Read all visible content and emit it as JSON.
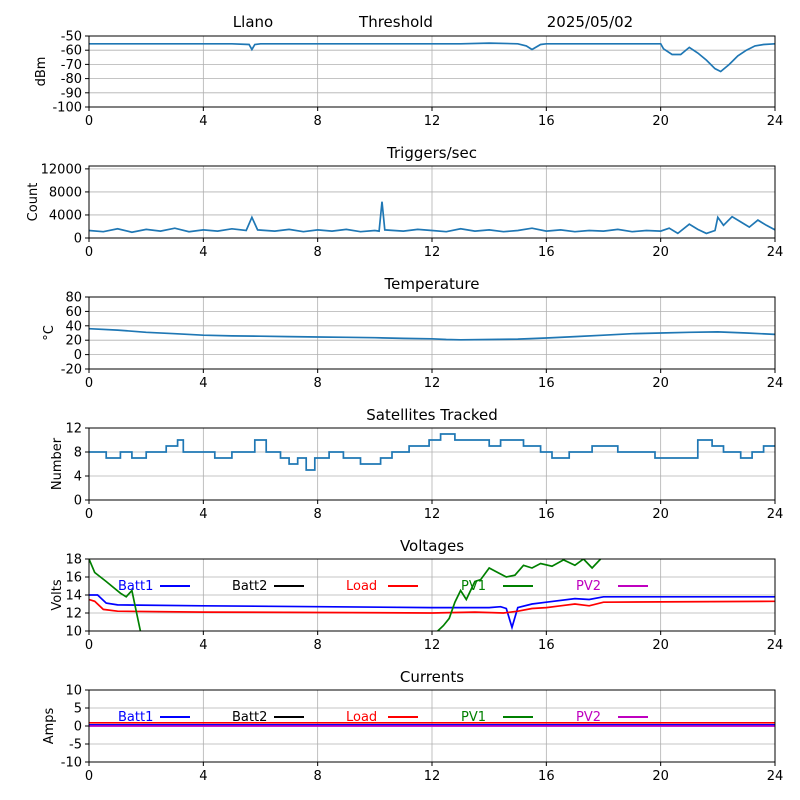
{
  "header": {
    "site": "Llano",
    "mode": "Threshold",
    "date": "2025/05/02"
  },
  "colors": {
    "default_line": "#1f77b4",
    "grid": "#b0b0b0",
    "axes": "#000000",
    "batt1": "#0000ff",
    "batt2": "#000000",
    "load": "#ff0000",
    "pv1": "#008000",
    "pv2": "#bf00bf"
  },
  "chart_data": [
    {
      "id": "signal",
      "type": "line",
      "title": "",
      "ylabel": "dBm",
      "xlim": [
        0,
        24
      ],
      "xticks": [
        0,
        4,
        8,
        12,
        16,
        20,
        24
      ],
      "ylim": [
        -100,
        -50
      ],
      "yticks": [
        -100,
        -90,
        -80,
        -70,
        -60,
        -50
      ],
      "grid": true,
      "series": [
        {
          "x": [
            0,
            1,
            2,
            3,
            4,
            5,
            5.6,
            5.7,
            5.8,
            6,
            7,
            8,
            9,
            10,
            11,
            12,
            13,
            14,
            15,
            15.3,
            15.5,
            15.8,
            16,
            17,
            18,
            19,
            20,
            20.1,
            20.4,
            20.7,
            21,
            21.3,
            21.6,
            21.9,
            22.1,
            22.4,
            22.7,
            23,
            23.3,
            23.6,
            24
          ],
          "y": [
            -55.5,
            -55.5,
            -55.5,
            -55.5,
            -55.5,
            -55.5,
            -56,
            -59.5,
            -56,
            -55.5,
            -55.5,
            -55.5,
            -55.5,
            -55.5,
            -55.5,
            -55.5,
            -55.5,
            -55,
            -55.5,
            -57,
            -59.5,
            -56,
            -55.5,
            -55.5,
            -55.5,
            -55.5,
            -55.5,
            -59,
            -63,
            -63,
            -58,
            -62,
            -67,
            -73,
            -75,
            -70,
            -64,
            -60,
            -57,
            -56,
            -55.5
          ]
        }
      ]
    },
    {
      "id": "triggers",
      "type": "line",
      "title": "Triggers/sec",
      "ylabel": "Count",
      "xlim": [
        0,
        24
      ],
      "xticks": [
        0,
        4,
        8,
        12,
        16,
        20,
        24
      ],
      "ylim": [
        0,
        12500
      ],
      "yticks": [
        0,
        4000,
        8000,
        12000
      ],
      "grid": true,
      "series": [
        {
          "x": [
            0,
            0.5,
            1,
            1.5,
            2,
            2.5,
            3,
            3.5,
            4,
            4.5,
            5,
            5.5,
            5.7,
            5.9,
            6.5,
            7,
            7.5,
            8,
            8.5,
            9,
            9.5,
            10,
            10.15,
            10.25,
            10.35,
            11,
            11.5,
            12,
            12.5,
            13,
            13.5,
            14,
            14.5,
            15,
            15.5,
            16,
            16.5,
            17,
            17.5,
            18,
            18.5,
            19,
            19.5,
            20,
            20.3,
            20.6,
            21,
            21.3,
            21.6,
            21.9,
            22,
            22.2,
            22.5,
            22.8,
            23.1,
            23.4,
            23.7,
            24
          ],
          "y": [
            1300,
            1100,
            1600,
            1000,
            1500,
            1200,
            1700,
            1100,
            1400,
            1200,
            1600,
            1300,
            3600,
            1400,
            1200,
            1500,
            1100,
            1400,
            1200,
            1500,
            1100,
            1300,
            1200,
            6300,
            1400,
            1200,
            1500,
            1300,
            1100,
            1600,
            1200,
            1400,
            1100,
            1300,
            1700,
            1200,
            1400,
            1100,
            1300,
            1200,
            1500,
            1100,
            1300,
            1200,
            1700,
            800,
            2400,
            1500,
            800,
            1300,
            3600,
            2200,
            3700,
            2800,
            1900,
            3100,
            2200,
            1400
          ]
        }
      ]
    },
    {
      "id": "temperature",
      "type": "line",
      "title": "Temperature",
      "ylabel": "°C",
      "xlim": [
        0,
        24
      ],
      "xticks": [
        0,
        4,
        8,
        12,
        16,
        20,
        24
      ],
      "ylim": [
        -20,
        80
      ],
      "yticks": [
        -20,
        0,
        20,
        40,
        60,
        80
      ],
      "grid": true,
      "series": [
        {
          "x": [
            0,
            1,
            2,
            3,
            4,
            5,
            6,
            7,
            8,
            9,
            10,
            11,
            12,
            12.5,
            13,
            14,
            15,
            16,
            17,
            18,
            19,
            20,
            21,
            22,
            23,
            24
          ],
          "y": [
            36,
            34,
            31,
            29,
            27,
            26,
            25.5,
            25,
            24.5,
            24,
            23.5,
            22.5,
            22,
            21,
            20.5,
            21,
            21.5,
            23,
            25,
            27,
            29,
            30,
            31,
            31.5,
            30,
            28
          ]
        }
      ]
    },
    {
      "id": "satellites",
      "type": "line",
      "title": "Satellites Tracked",
      "ylabel": "Number",
      "xlim": [
        0,
        24
      ],
      "xticks": [
        0,
        4,
        8,
        12,
        16,
        20,
        24
      ],
      "ylim": [
        0,
        12
      ],
      "yticks": [
        0,
        4,
        8,
        12
      ],
      "grid": true,
      "step": true,
      "series": [
        {
          "x": [
            0,
            0.6,
            1.1,
            1.5,
            2,
            2.7,
            3.1,
            3.3,
            4,
            4.4,
            5,
            5.4,
            5.8,
            6.2,
            6.7,
            7,
            7.3,
            7.6,
            7.9,
            8.4,
            8.9,
            9.5,
            10.2,
            10.6,
            11.2,
            11.9,
            12.3,
            12.8,
            13.2,
            14,
            14.4,
            15.2,
            15.8,
            16.2,
            16.8,
            17.6,
            18,
            18.5,
            19.3,
            19.8,
            20.2,
            21.3,
            21.8,
            22.2,
            22.8,
            23.2,
            23.6,
            24
          ],
          "y": [
            8,
            7,
            8,
            7,
            8,
            9,
            10,
            8,
            8,
            7,
            8,
            8,
            10,
            8,
            7,
            6,
            7,
            5,
            7,
            8,
            7,
            6,
            7,
            8,
            9,
            10,
            11,
            10,
            10,
            9,
            10,
            9,
            8,
            7,
            8,
            9,
            9,
            8,
            8,
            7,
            7,
            10,
            9,
            8,
            7,
            8,
            9,
            9
          ]
        }
      ]
    },
    {
      "id": "voltages",
      "type": "line",
      "title": "Voltages",
      "ylabel": "Volts",
      "xlim": [
        0,
        24
      ],
      "xticks": [
        0,
        4,
        8,
        12,
        16,
        20,
        24
      ],
      "ylim": [
        10,
        18
      ],
      "yticks": [
        10,
        12,
        14,
        16,
        18
      ],
      "grid": true,
      "legend": [
        "Batt1",
        "Batt2",
        "Load",
        "PV1",
        "PV2"
      ],
      "series": [
        {
          "name": "Batt1",
          "x": [
            0,
            0.3,
            0.6,
            1,
            4,
            8,
            12,
            14,
            14.4,
            14.6,
            14.8,
            15,
            15.5,
            16,
            17,
            17.5,
            18,
            20,
            24
          ],
          "y": [
            14,
            14,
            13.1,
            12.9,
            12.8,
            12.7,
            12.6,
            12.6,
            12.7,
            12.5,
            10.4,
            12.6,
            13,
            13.2,
            13.6,
            13.5,
            13.8,
            13.8,
            13.8
          ]
        },
        {
          "name": "Load",
          "x": [
            0,
            0.2,
            0.5,
            1,
            4,
            8,
            12,
            13.5,
            14.5,
            15,
            15.5,
            16,
            16.5,
            17,
            17.5,
            18,
            24
          ],
          "y": [
            13.5,
            13.3,
            12.4,
            12.2,
            12.1,
            12.05,
            12.0,
            12.1,
            12.0,
            12.2,
            12.5,
            12.6,
            12.8,
            13.0,
            12.8,
            13.2,
            13.3
          ]
        },
        {
          "name": "PV1",
          "x": [
            0,
            0.2,
            0.6,
            1.1,
            1.3,
            1.5,
            1.6,
            1.8
          ],
          "y": [
            18,
            16.5,
            15.5,
            14.2,
            13.8,
            14.5,
            13,
            10
          ]
        },
        {
          "name": "PV1",
          "x": [
            12.2,
            12.4,
            12.6,
            12.8,
            13,
            13.2,
            13.5,
            13.7,
            14,
            14.3,
            14.6,
            14.9,
            15.2,
            15.5,
            15.8,
            16.2,
            16.6,
            17,
            17.3,
            17.6,
            17.9
          ],
          "y": [
            10,
            10.6,
            11.4,
            13.2,
            14.5,
            13.5,
            15.5,
            15.7,
            17,
            16.5,
            16,
            16.2,
            17.3,
            17,
            17.5,
            17.2,
            17.9,
            17.3,
            18,
            17,
            18
          ]
        }
      ]
    },
    {
      "id": "currents",
      "type": "line",
      "title": "Currents",
      "ylabel": "Amps",
      "xlim": [
        0,
        24
      ],
      "xticks": [
        0,
        4,
        8,
        12,
        16,
        20,
        24
      ],
      "ylim": [
        -10,
        10
      ],
      "yticks": [
        -10,
        -5,
        0,
        5,
        10
      ],
      "grid": true,
      "legend": [
        "Batt1",
        "Batt2",
        "Load",
        "PV1",
        "PV2"
      ],
      "series": [
        {
          "name": "Load",
          "x": [
            0,
            24
          ],
          "y": [
            0.9,
            0.9
          ]
        },
        {
          "name": "Batt1",
          "x": [
            0,
            24
          ],
          "y": [
            0.3,
            0.3
          ]
        },
        {
          "name": "PV2",
          "x": [
            0,
            24
          ],
          "y": [
            0.0,
            0.0
          ]
        }
      ]
    }
  ]
}
